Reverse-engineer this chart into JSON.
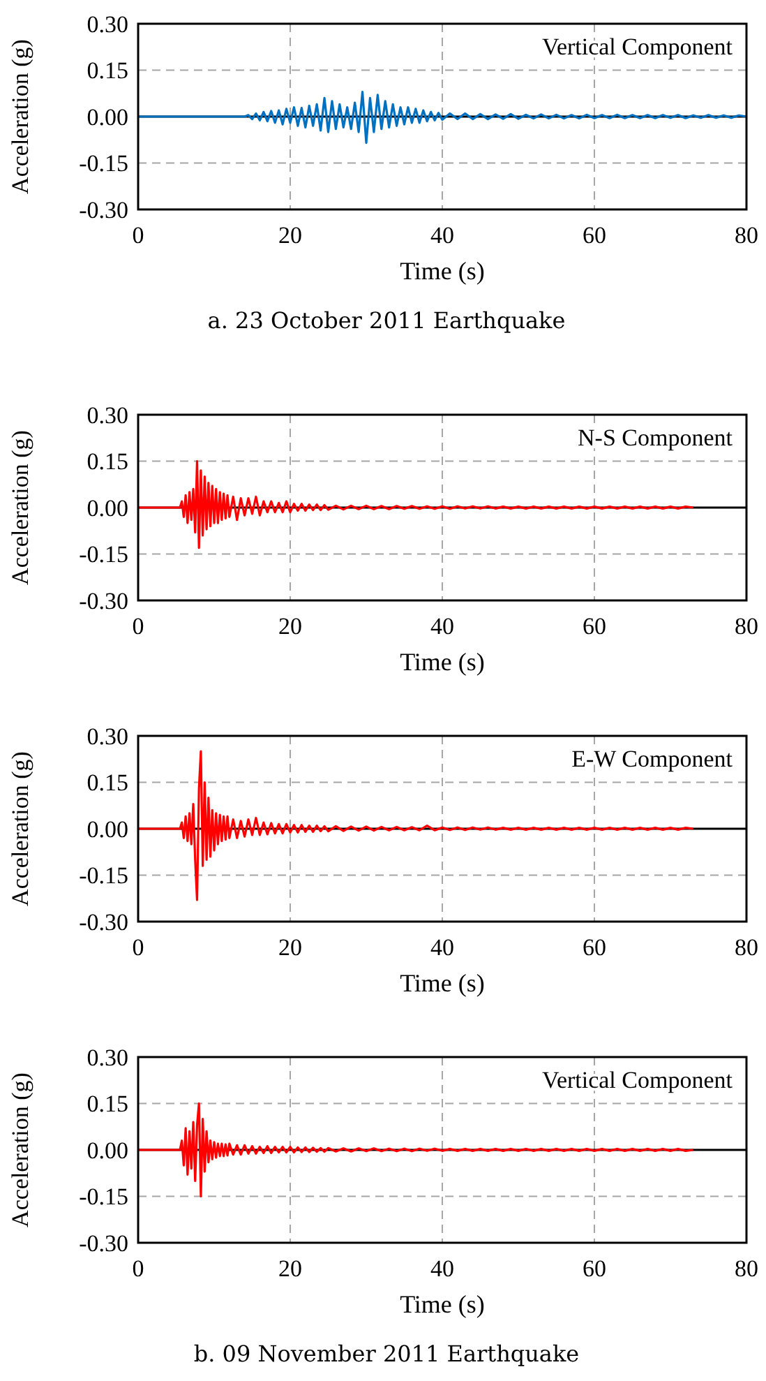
{
  "chart_data": [
    {
      "type": "line",
      "xlabel": "Time (s)",
      "ylabel": "Acceleration (g)",
      "annotations": [
        "Vertical Component",
        "a. 23 October 2011 Earthquake"
      ],
      "xlim": [
        0,
        80
      ],
      "ylim": [
        -0.3,
        0.3
      ],
      "xticks": [
        0,
        20,
        40,
        60,
        80
      ],
      "yticks": [
        {
          "value": -0.3,
          "label": "-0.30"
        },
        {
          "value": -0.15,
          "label": "-0.15"
        },
        {
          "value": 0,
          "label": "0.00"
        },
        {
          "value": 0.15,
          "label": "0.15"
        },
        {
          "value": 0.3,
          "label": "0.30"
        }
      ],
      "grid": true,
      "line_style": "solid",
      "series": [
        {
          "color": "#0070c0",
          "x": [
            0,
            14,
            14.5,
            15,
            15.5,
            16,
            16.5,
            17,
            17.5,
            18,
            18.5,
            19,
            19.5,
            20,
            20.5,
            21,
            21.5,
            22,
            22.5,
            23,
            23.5,
            24,
            24.5,
            25,
            25.5,
            26,
            26.5,
            27,
            27.5,
            28,
            28.5,
            29,
            29.5,
            30,
            30.5,
            31,
            31.5,
            32,
            32.5,
            33,
            33.5,
            34,
            34.5,
            35,
            35.5,
            36,
            36.5,
            37,
            37.5,
            38,
            38.5,
            39,
            39.5,
            40,
            41,
            42,
            43,
            44,
            45,
            46,
            47,
            48,
            49,
            50,
            51,
            52,
            53,
            54,
            55,
            56,
            57,
            58,
            59,
            60,
            61,
            62,
            63,
            64,
            65,
            66,
            67,
            68,
            69,
            70,
            71,
            72,
            73,
            74,
            75,
            76,
            77,
            78,
            79,
            80
          ],
          "values": [
            0,
            0,
            0.005,
            -0.008,
            0.01,
            -0.012,
            0.015,
            -0.015,
            0.018,
            -0.02,
            0.02,
            -0.025,
            0.025,
            -0.02,
            0.03,
            -0.03,
            0.028,
            -0.035,
            0.035,
            -0.03,
            0.04,
            -0.045,
            0.06,
            -0.05,
            0.05,
            -0.04,
            0.04,
            -0.035,
            0.03,
            -0.04,
            0.045,
            -0.05,
            0.08,
            -0.085,
            0.06,
            -0.05,
            0.07,
            -0.04,
            0.05,
            -0.035,
            0.04,
            -0.03,
            0.03,
            -0.025,
            0.03,
            -0.02,
            0.025,
            -0.02,
            0.02,
            -0.015,
            0.015,
            -0.012,
            0.012,
            -0.01,
            0.01,
            -0.008,
            0.01,
            -0.008,
            0.008,
            -0.008,
            0.007,
            -0.007,
            0.008,
            -0.007,
            0.006,
            -0.006,
            0.007,
            -0.006,
            0.006,
            -0.006,
            0.005,
            -0.006,
            0.006,
            -0.005,
            0.005,
            -0.005,
            0.006,
            -0.005,
            0.005,
            -0.005,
            0.005,
            -0.005,
            0.005,
            -0.004,
            0.005,
            -0.005,
            0.004,
            -0.004,
            0.005,
            -0.004,
            0.004,
            -0.004,
            0.004,
            0
          ]
        }
      ]
    },
    {
      "type": "line",
      "xlabel": "Time (s)",
      "ylabel": "Acceleration (g)",
      "annotations": [
        "N-S Component"
      ],
      "xlim": [
        0,
        80
      ],
      "ylim": [
        -0.3,
        0.3
      ],
      "xticks": [
        0,
        20,
        40,
        60,
        80
      ],
      "yticks": [
        {
          "value": -0.3,
          "label": "-0.30"
        },
        {
          "value": -0.15,
          "label": "-0.15"
        },
        {
          "value": 0,
          "label": "0.00"
        },
        {
          "value": 0.15,
          "label": "0.15"
        },
        {
          "value": 0.3,
          "label": "0.30"
        }
      ],
      "grid": true,
      "line_style": "solid",
      "series": [
        {
          "color": "#ff0000",
          "x": [
            0,
            5.5,
            5.75,
            6,
            6.25,
            6.5,
            6.75,
            7,
            7.25,
            7.5,
            7.75,
            8,
            8.25,
            8.5,
            8.75,
            9,
            9.25,
            9.5,
            9.75,
            10,
            10.25,
            10.5,
            10.75,
            11,
            11.25,
            11.5,
            11.75,
            12,
            12.5,
            13,
            13.5,
            14,
            14.5,
            15,
            15.5,
            16,
            16.5,
            17,
            17.5,
            18,
            18.5,
            19,
            19.5,
            20,
            20.5,
            21,
            21.5,
            22,
            22.5,
            23,
            23.5,
            24,
            24.5,
            25,
            26,
            27,
            28,
            29,
            30,
            31,
            32,
            33,
            34,
            35,
            36,
            37,
            38,
            39,
            40,
            41,
            42,
            43,
            44,
            45,
            46,
            47,
            48,
            49,
            50,
            51,
            52,
            53,
            54,
            55,
            56,
            57,
            58,
            59,
            60,
            61,
            62,
            63,
            64,
            65,
            66,
            67,
            68,
            69,
            70,
            71,
            72,
            73
          ],
          "values": [
            0,
            0,
            0.02,
            -0.03,
            0.04,
            -0.05,
            0.05,
            -0.04,
            0.06,
            -0.08,
            0.15,
            -0.13,
            0.12,
            -0.09,
            0.1,
            -0.07,
            0.08,
            -0.06,
            0.07,
            -0.05,
            0.06,
            -0.05,
            0.05,
            -0.04,
            0.045,
            -0.035,
            0.04,
            -0.03,
            0.035,
            -0.04,
            0.03,
            -0.025,
            0.03,
            -0.02,
            0.035,
            -0.025,
            0.02,
            -0.015,
            0.02,
            -0.015,
            0.015,
            -0.015,
            0.02,
            -0.015,
            0.012,
            -0.01,
            0.012,
            -0.01,
            0.01,
            -0.008,
            0.01,
            -0.008,
            0.008,
            -0.007,
            0.006,
            -0.006,
            0.006,
            -0.005,
            0.006,
            -0.005,
            0.005,
            -0.005,
            0.005,
            -0.004,
            0.005,
            -0.004,
            0.004,
            -0.004,
            0.004,
            -0.004,
            0.004,
            -0.003,
            0.004,
            -0.003,
            0.004,
            -0.003,
            0.003,
            -0.003,
            0.003,
            -0.003,
            0.003,
            -0.003,
            0.003,
            -0.003,
            0.003,
            -0.003,
            0.003,
            -0.003,
            0.003,
            -0.003,
            0.003,
            -0.003,
            0.003,
            -0.003,
            0.003,
            -0.003,
            0.003,
            -0.003,
            0.003,
            -0.003,
            0.003,
            0
          ]
        }
      ]
    },
    {
      "type": "line",
      "xlabel": "Time (s)",
      "ylabel": "Acceleration (g)",
      "annotations": [
        "E-W Component"
      ],
      "xlim": [
        0,
        80
      ],
      "ylim": [
        -0.3,
        0.3
      ],
      "xticks": [
        0,
        20,
        40,
        60,
        80
      ],
      "yticks": [
        {
          "value": -0.3,
          "label": "-0.30"
        },
        {
          "value": -0.15,
          "label": "-0.15"
        },
        {
          "value": 0,
          "label": "0.00"
        },
        {
          "value": 0.15,
          "label": "0.15"
        },
        {
          "value": 0.3,
          "label": "0.30"
        }
      ],
      "grid": true,
      "line_style": "solid",
      "series": [
        {
          "color": "#ff0000",
          "x": [
            0,
            5.5,
            5.75,
            6,
            6.25,
            6.5,
            6.75,
            7,
            7.25,
            7.5,
            7.75,
            8,
            8.25,
            8.5,
            8.75,
            9,
            9.25,
            9.5,
            9.75,
            10,
            10.25,
            10.5,
            10.75,
            11,
            11.25,
            11.5,
            11.75,
            12,
            12.5,
            13,
            13.5,
            14,
            14.5,
            15,
            15.5,
            16,
            16.5,
            17,
            17.5,
            18,
            18.5,
            19,
            19.5,
            20,
            20.5,
            21,
            21.5,
            22,
            22.5,
            23,
            23.5,
            24,
            24.5,
            25,
            26,
            27,
            28,
            29,
            30,
            31,
            32,
            33,
            34,
            35,
            36,
            37,
            38,
            39,
            40,
            41,
            42,
            43,
            44,
            45,
            46,
            47,
            48,
            49,
            50,
            51,
            52,
            53,
            54,
            55,
            56,
            57,
            58,
            59,
            60,
            61,
            62,
            63,
            64,
            65,
            66,
            67,
            68,
            69,
            70,
            71,
            72,
            73
          ],
          "values": [
            0,
            0,
            0.02,
            -0.03,
            0.04,
            -0.04,
            0.05,
            -0.05,
            0.08,
            -0.1,
            -0.23,
            0.13,
            0.25,
            -0.12,
            0.15,
            -0.1,
            0.1,
            -0.09,
            0.06,
            -0.07,
            0.05,
            -0.05,
            0.045,
            -0.04,
            0.04,
            -0.035,
            0.04,
            -0.03,
            0.03,
            -0.03,
            0.025,
            -0.025,
            0.03,
            -0.02,
            0.035,
            -0.02,
            0.02,
            -0.018,
            0.018,
            -0.015,
            0.015,
            -0.015,
            0.015,
            -0.012,
            0.012,
            -0.012,
            0.012,
            -0.01,
            0.01,
            -0.01,
            0.01,
            -0.008,
            0.008,
            -0.008,
            0.008,
            -0.007,
            0.007,
            -0.006,
            0.007,
            -0.006,
            0.006,
            -0.005,
            0.006,
            -0.005,
            0.005,
            -0.005,
            0.01,
            -0.005,
            0.004,
            -0.004,
            0.004,
            -0.004,
            0.004,
            -0.003,
            0.004,
            -0.003,
            0.003,
            -0.003,
            0.003,
            -0.003,
            0.003,
            -0.003,
            0.003,
            -0.003,
            0.003,
            -0.003,
            0.003,
            -0.003,
            0.003,
            -0.003,
            0.003,
            -0.003,
            0.003,
            -0.003,
            0.003,
            -0.003,
            0.003,
            -0.003,
            0.003,
            -0.003,
            0.003,
            0
          ]
        }
      ]
    },
    {
      "type": "line",
      "xlabel": "Time (s)",
      "ylabel": "Acceleration (g)",
      "annotations": [
        "Vertical Component",
        "b. 09 November 2011 Earthquake"
      ],
      "xlim": [
        0,
        80
      ],
      "ylim": [
        -0.3,
        0.3
      ],
      "xticks": [
        0,
        20,
        40,
        60,
        80
      ],
      "yticks": [
        {
          "value": -0.3,
          "label": "-0.30"
        },
        {
          "value": -0.15,
          "label": "-0.15"
        },
        {
          "value": 0,
          "label": "0.00"
        },
        {
          "value": 0.15,
          "label": "0.15"
        },
        {
          "value": 0.3,
          "label": "0.30"
        }
      ],
      "grid": true,
      "line_style": "solid",
      "series": [
        {
          "color": "#ff0000",
          "x": [
            0,
            5.5,
            5.75,
            6,
            6.25,
            6.5,
            6.75,
            7,
            7.25,
            7.5,
            7.75,
            8,
            8.25,
            8.5,
            8.75,
            9,
            9.25,
            9.5,
            9.75,
            10,
            10.25,
            10.5,
            10.75,
            11,
            11.25,
            11.5,
            11.75,
            12,
            12.5,
            13,
            13.5,
            14,
            14.5,
            15,
            15.5,
            16,
            16.5,
            17,
            17.5,
            18,
            18.5,
            19,
            19.5,
            20,
            20.5,
            21,
            21.5,
            22,
            22.5,
            23,
            23.5,
            24,
            24.5,
            25,
            26,
            27,
            28,
            29,
            30,
            31,
            32,
            33,
            34,
            35,
            36,
            37,
            38,
            39,
            40,
            41,
            42,
            43,
            44,
            45,
            46,
            47,
            48,
            49,
            50,
            51,
            52,
            53,
            54,
            55,
            56,
            57,
            58,
            59,
            60,
            61,
            62,
            63,
            64,
            65,
            66,
            67,
            68,
            69,
            70,
            71,
            72,
            73
          ],
          "values": [
            0,
            0,
            0.03,
            -0.05,
            0.07,
            -0.08,
            0.06,
            -0.06,
            0.09,
            -0.1,
            0.08,
            0.15,
            -0.15,
            0.1,
            -0.07,
            0.06,
            -0.04,
            0.03,
            -0.03,
            0.025,
            -0.025,
            0.02,
            -0.02,
            0.02,
            -0.02,
            0.018,
            -0.018,
            0.02,
            -0.015,
            0.015,
            -0.015,
            0.015,
            -0.012,
            0.012,
            -0.012,
            0.01,
            -0.01,
            0.012,
            -0.01,
            0.01,
            -0.008,
            0.01,
            -0.008,
            0.01,
            -0.008,
            0.008,
            -0.007,
            0.008,
            -0.007,
            0.007,
            -0.006,
            0.006,
            -0.006,
            0.006,
            -0.005,
            0.005,
            -0.005,
            0.005,
            -0.004,
            0.005,
            -0.004,
            0.004,
            -0.004,
            0.004,
            -0.004,
            0.004,
            -0.003,
            0.004,
            -0.003,
            0.003,
            -0.003,
            0.003,
            -0.003,
            0.003,
            -0.003,
            0.003,
            -0.003,
            0.003,
            -0.003,
            0.003,
            -0.003,
            0.003,
            -0.003,
            0.003,
            -0.003,
            0.003,
            -0.003,
            0.003,
            -0.003,
            0.003,
            -0.003,
            0.003,
            -0.003,
            0.003,
            -0.003,
            0.003,
            -0.003,
            0.003,
            -0.003,
            0.003,
            -0.003,
            0
          ]
        }
      ]
    }
  ]
}
